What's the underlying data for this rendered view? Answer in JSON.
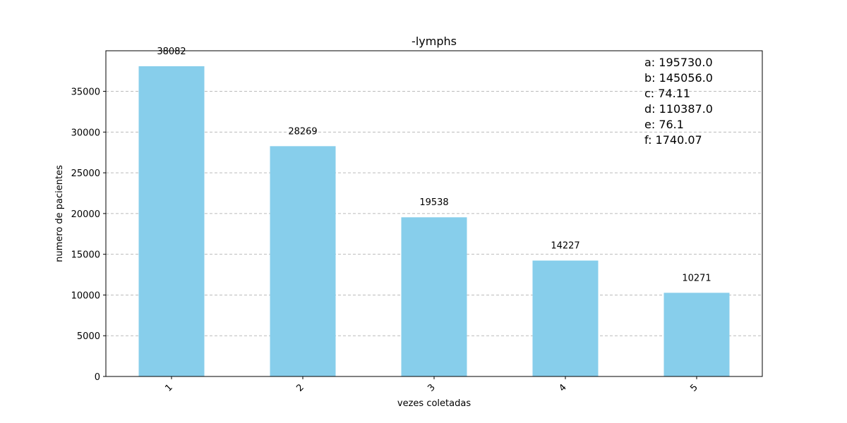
{
  "chart_data": {
    "type": "bar",
    "title": "-lymphs",
    "xlabel": "vezes coletadas",
    "ylabel": "numero de pacientes",
    "categories": [
      "1",
      "2",
      "3",
      "4",
      "5"
    ],
    "values": [
      38082,
      28269,
      19538,
      14227,
      10271
    ],
    "data_labels": [
      "38082",
      "28269",
      "19538",
      "14227",
      "10271"
    ],
    "ylim": [
      0,
      39980
    ],
    "yticks": [
      0,
      5000,
      10000,
      15000,
      20000,
      25000,
      30000,
      35000
    ],
    "ytick_labels": [
      "0",
      "5000",
      "10000",
      "15000",
      "20000",
      "25000",
      "30000",
      "35000"
    ],
    "grid": "y-dashed",
    "bar_color": "#87CEEB",
    "annotations": [
      "a: 195730.0",
      "b: 145056.0",
      "c: 74.11",
      "d: 110387.0",
      "e: 76.1",
      "f: 1740.07"
    ]
  }
}
